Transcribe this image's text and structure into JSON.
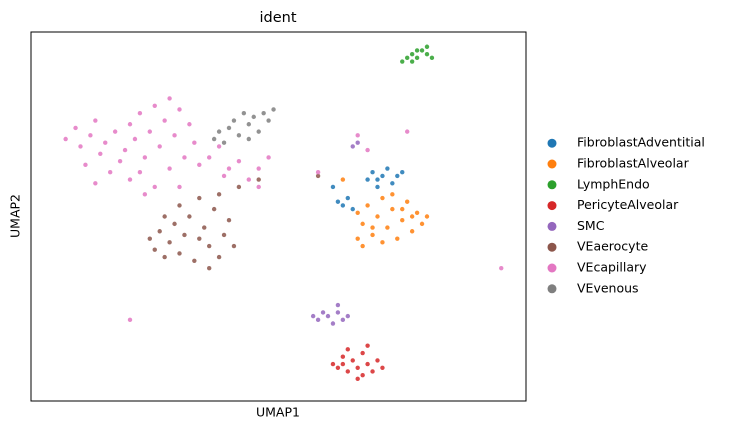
{
  "chart_data": {
    "type": "scatter",
    "title": "ident",
    "xlabel": "UMAP1",
    "ylabel": "UMAP2",
    "xlim": [
      0,
      100
    ],
    "ylim": [
      0,
      100
    ],
    "legend": "right",
    "grid": false,
    "series": [
      {
        "name": "FibroblastAdventitial",
        "color": "#1f77b4",
        "x": [
          68,
          69,
          70,
          71,
          72,
          73,
          74,
          75,
          70,
          62,
          63,
          65,
          64,
          61
        ],
        "y": [
          60,
          62,
          58,
          61,
          63,
          59,
          61,
          62,
          60,
          54,
          53,
          52,
          55,
          58
        ]
      },
      {
        "name": "FibroblastAlveolar",
        "color": "#ff7f0e",
        "x": [
          66,
          67,
          68,
          69,
          70,
          71,
          72,
          73,
          74,
          75,
          76,
          77,
          78,
          79,
          80,
          71,
          67,
          73,
          69,
          75,
          77,
          63,
          66
        ],
        "y": [
          51,
          48,
          53,
          45,
          50,
          55,
          47,
          52,
          44,
          49,
          54,
          46,
          51,
          48,
          50,
          43,
          42,
          56,
          47,
          52,
          50,
          60,
          44
        ]
      },
      {
        "name": "LymphEndo",
        "color": "#2ca02c",
        "x": [
          75,
          76,
          77,
          78,
          79,
          80,
          81,
          78,
          77,
          80
        ],
        "y": [
          92,
          93,
          94,
          93,
          95,
          94,
          93,
          95,
          92,
          96
        ]
      },
      {
        "name": "PericyteAlveolar",
        "color": "#d62728",
        "x": [
          61,
          62,
          63,
          64,
          65,
          66,
          67,
          68,
          69,
          70,
          71,
          64,
          66,
          68,
          63,
          67
        ],
        "y": [
          10,
          9,
          12,
          8,
          11,
          9,
          13,
          10,
          8,
          11,
          9,
          14,
          6,
          15,
          10,
          7
        ]
      },
      {
        "name": "SMC",
        "color": "#9467bd",
        "x": [
          57,
          58,
          59,
          60,
          61,
          62,
          63,
          64,
          62,
          65,
          66
        ],
        "y": [
          23,
          22,
          24,
          23,
          21,
          24,
          22,
          23,
          26,
          69,
          70
        ]
      },
      {
        "name": "VEaerocyte",
        "color": "#8c564b",
        "x": [
          24,
          25,
          26,
          27,
          28,
          29,
          30,
          31,
          32,
          33,
          34,
          35,
          36,
          37,
          38,
          39,
          40,
          41,
          30,
          34,
          38,
          27,
          36,
          42,
          46,
          58
        ],
        "y": [
          44,
          41,
          46,
          39,
          43,
          48,
          40,
          45,
          50,
          38,
          44,
          47,
          42,
          52,
          39,
          45,
          49,
          42,
          53,
          55,
          56,
          50,
          36,
          58,
          60,
          61
        ]
      },
      {
        "name": "VEcapillary",
        "color": "#e377c2",
        "x": [
          7,
          9,
          10,
          12,
          13,
          14,
          15,
          17,
          18,
          19,
          20,
          21,
          22,
          23,
          24,
          25,
          26,
          27,
          28,
          29,
          30,
          31,
          32,
          33,
          11,
          16,
          22,
          28,
          34,
          36,
          38,
          40,
          42,
          44,
          46,
          48,
          39,
          23,
          25,
          20,
          13,
          58,
          66,
          76,
          68,
          95,
          20,
          30,
          46
        ],
        "y": [
          71,
          74,
          69,
          72,
          76,
          67,
          70,
          73,
          65,
          68,
          75,
          71,
          78,
          66,
          73,
          80,
          69,
          76,
          82,
          72,
          79,
          66,
          75,
          70,
          64,
          62,
          62,
          63,
          64,
          66,
          69,
          63,
          65,
          60,
          63,
          66,
          61,
          56,
          58,
          60,
          59,
          62,
          72,
          73,
          68,
          36,
          22,
          58,
          58
        ]
      },
      {
        "name": "VEvenous",
        "color": "#7f7f7f",
        "x": [
          37,
          38,
          40,
          41,
          42,
          43,
          44,
          45,
          46,
          47,
          48,
          49,
          39,
          44
        ],
        "y": [
          71,
          73,
          74,
          76,
          72,
          78,
          75,
          77,
          73,
          78,
          76,
          79,
          70,
          71
        ]
      }
    ]
  }
}
